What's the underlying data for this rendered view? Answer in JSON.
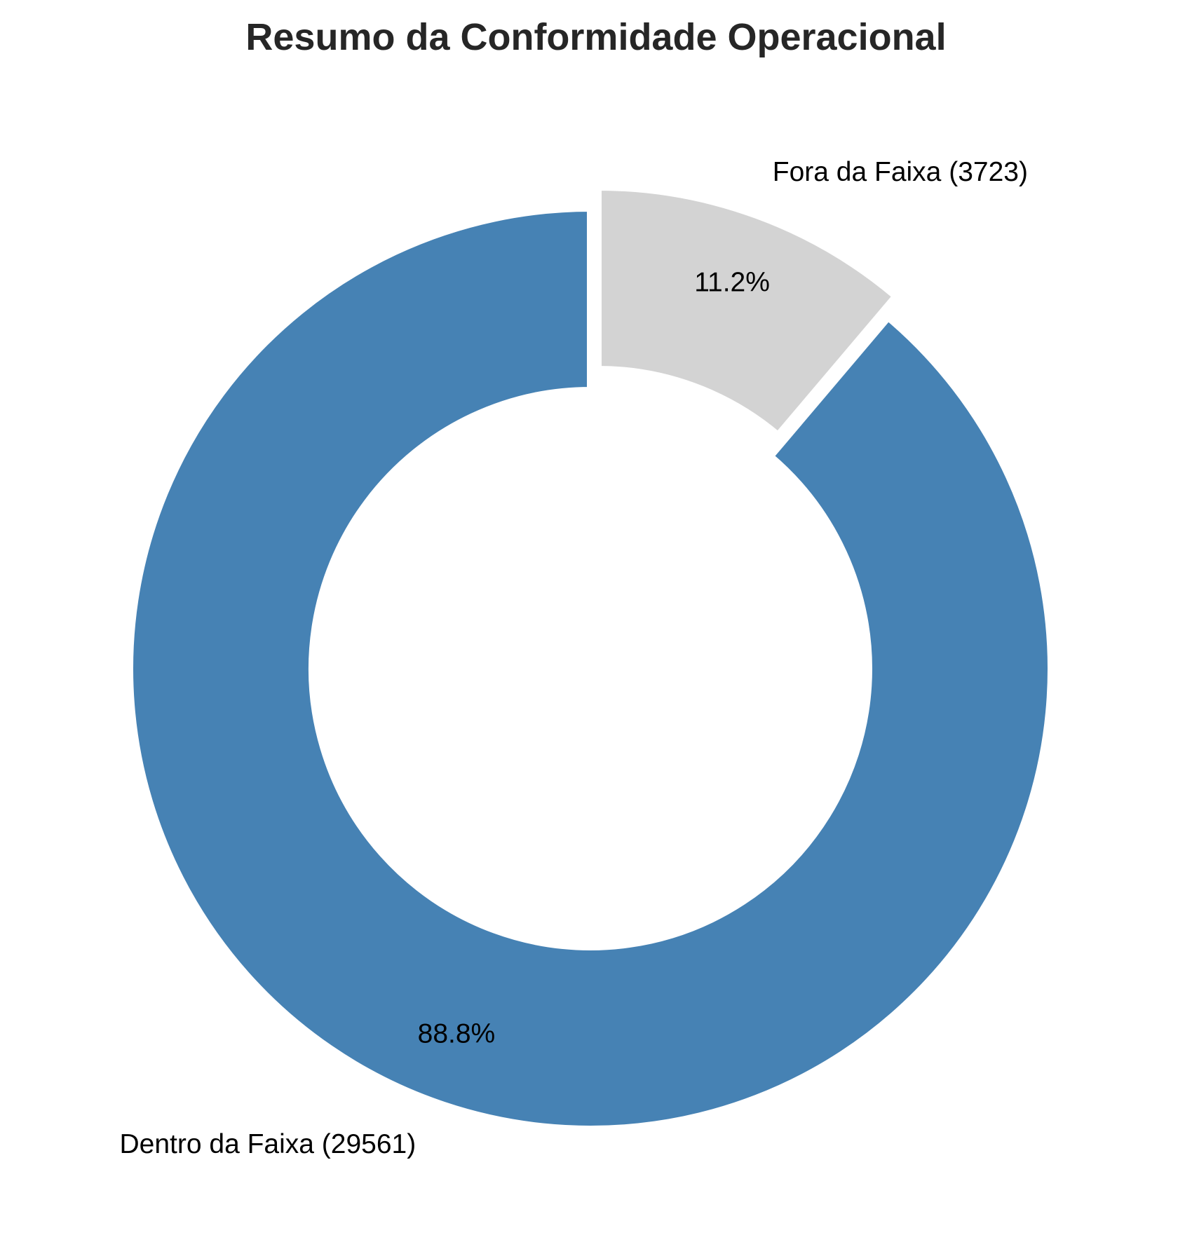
{
  "chart_data": {
    "type": "pie",
    "title": "Resumo da Conformidade Operacional",
    "donut": true,
    "start_angle_deg": 90,
    "direction": "clockwise",
    "slices": [
      {
        "name": "Fora da Faixa",
        "value": 3723,
        "label": "Fora da Faixa (3723)",
        "pct_label": "11.2%",
        "color": "#d3d3d3",
        "exploded": true
      },
      {
        "name": "Dentro da Faixa",
        "value": 29561,
        "label": "Dentro da Faixa (29561)",
        "pct_label": "88.8%",
        "color": "#4682b4",
        "exploded": false
      }
    ]
  }
}
